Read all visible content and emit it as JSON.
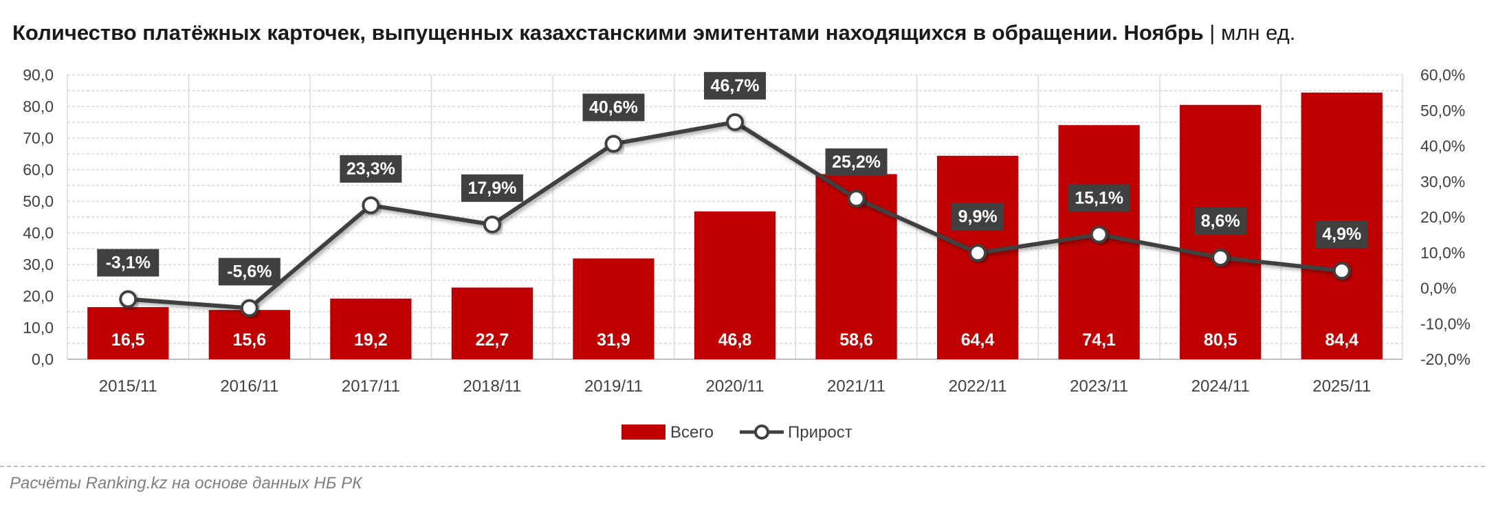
{
  "title": {
    "main": "Количество платёжных карточек, выпущенных казахстанскими эмитентами находящихся в обращении. Ноябрь",
    "unit": " | млн ед."
  },
  "footer": {
    "source": "Расчёты Ranking.kz на основе данных НБ РК"
  },
  "chart_data": {
    "type": "bar",
    "categories": [
      "2015/11",
      "2016/11",
      "2017/11",
      "2018/11",
      "2019/11",
      "2020/11",
      "2021/11",
      "2022/11",
      "2023/11",
      "2024/11",
      "2025/11"
    ],
    "series": [
      {
        "name": "Всего",
        "type": "bar",
        "axis": "left",
        "values": [
          16.5,
          15.6,
          19.2,
          22.7,
          31.9,
          46.8,
          58.6,
          64.4,
          74.1,
          80.5,
          84.4
        ],
        "labels": [
          "16,5",
          "15,6",
          "19,2",
          "22,7",
          "31,9",
          "46,8",
          "58,6",
          "64,4",
          "74,1",
          "80,5",
          "84,4"
        ]
      },
      {
        "name": "Прирост",
        "type": "line",
        "axis": "right",
        "values": [
          -3.1,
          -5.6,
          23.3,
          17.9,
          40.6,
          46.7,
          25.2,
          9.9,
          15.1,
          8.6,
          4.9
        ],
        "labels": [
          "-3,1%",
          "-5,6%",
          "23,3%",
          "17,9%",
          "40,6%",
          "46,7%",
          "25,2%",
          "9,9%",
          "15,1%",
          "8,6%",
          "4,9%"
        ]
      }
    ],
    "left_axis": {
      "ylim": [
        0,
        90
      ],
      "ticks": [
        "0,0",
        "10,0",
        "20,0",
        "30,0",
        "40,0",
        "50,0",
        "60,0",
        "70,0",
        "80,0",
        "90,0"
      ]
    },
    "right_axis": {
      "ylim": [
        -20,
        60
      ],
      "ticks": [
        "-20,0%",
        "-10,0%",
        "0,0%",
        "10,0%",
        "20,0%",
        "30,0%",
        "40,0%",
        "50,0%",
        "60,0%"
      ]
    },
    "grid": true,
    "legend_position": "bottom-center",
    "colors": {
      "bar": "#c00000",
      "line": "#404040",
      "label_box": "#404040",
      "marker_fill": "#ffffff"
    }
  }
}
